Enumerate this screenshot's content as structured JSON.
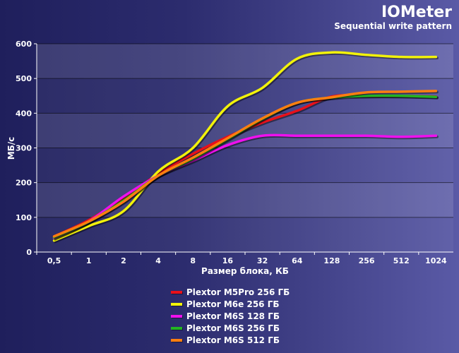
{
  "chart_data": {
    "type": "line",
    "title": "IOMeter",
    "subtitle": "Sequential write pattern",
    "xlabel": "Размер блока, КБ",
    "ylabel": "МБ/с",
    "categories": [
      "0,5",
      "1",
      "2",
      "4",
      "8",
      "16",
      "32",
      "64",
      "128",
      "256",
      "512",
      "1024"
    ],
    "ylim": [
      0,
      600
    ],
    "yticks": [
      0,
      100,
      200,
      300,
      400,
      500,
      600
    ],
    "grid": true,
    "legend_position": "bottom-center",
    "series": [
      {
        "name": "Plextor M5Pro 256 ГБ",
        "color": "#e8101a",
        "values": [
          45,
          92,
          155,
          225,
          283,
          332,
          373,
          407,
          448,
          450,
          450,
          448
        ]
      },
      {
        "name": "Plextor M6e 256 ГБ",
        "color": "#f2f20a",
        "values": [
          33,
          75,
          118,
          232,
          300,
          420,
          473,
          557,
          575,
          568,
          562,
          562
        ]
      },
      {
        "name": "Plextor M6S 128 ГБ",
        "color": "#ee10ee",
        "values": [
          40,
          88,
          160,
          220,
          263,
          308,
          335,
          335,
          335,
          335,
          332,
          335
        ]
      },
      {
        "name": "Plextor M6S 256 ГБ",
        "color": "#22b422",
        "values": [
          42,
          87,
          148,
          220,
          268,
          325,
          383,
          430,
          445,
          450,
          450,
          447
        ]
      },
      {
        "name": "Plextor M6S 512 ГБ",
        "color": "#ff7e10",
        "values": [
          45,
          88,
          145,
          220,
          272,
          328,
          385,
          430,
          446,
          460,
          462,
          464
        ]
      }
    ]
  }
}
